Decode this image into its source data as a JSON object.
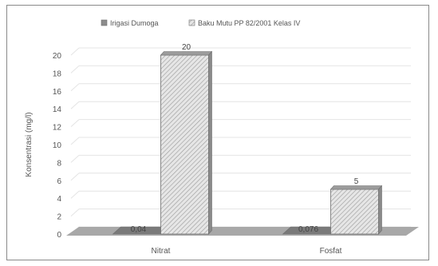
{
  "chart_data": {
    "type": "bar",
    "title": "",
    "xlabel": "",
    "ylabel": "Konsentrasi (mg/l)",
    "categories": [
      "Nitrat",
      "Fosfat"
    ],
    "series": [
      {
        "name": "Irigasi Dumoga",
        "values": [
          0.04,
          0.076
        ],
        "labels": [
          "0,04",
          "0,076"
        ]
      },
      {
        "name": "Baku Mutu PP 82/2001 Kelas IV",
        "values": [
          20,
          5
        ],
        "labels": [
          "20",
          "5"
        ]
      }
    ],
    "ylim": [
      0,
      20
    ],
    "yticks": [
      0,
      2,
      4,
      6,
      8,
      10,
      12,
      14,
      16,
      18,
      20
    ],
    "grid": true,
    "legend_position": "top",
    "three_d": true,
    "colors": {
      "series_0_fill": "#8c8c8c",
      "series_1_fill": "#e6e6e6",
      "series_1_hatch": "#9a9a9a",
      "bar_outline": "#6e6e6e",
      "floor": "#a8a8a8",
      "grid": "#e4e4e4"
    }
  }
}
